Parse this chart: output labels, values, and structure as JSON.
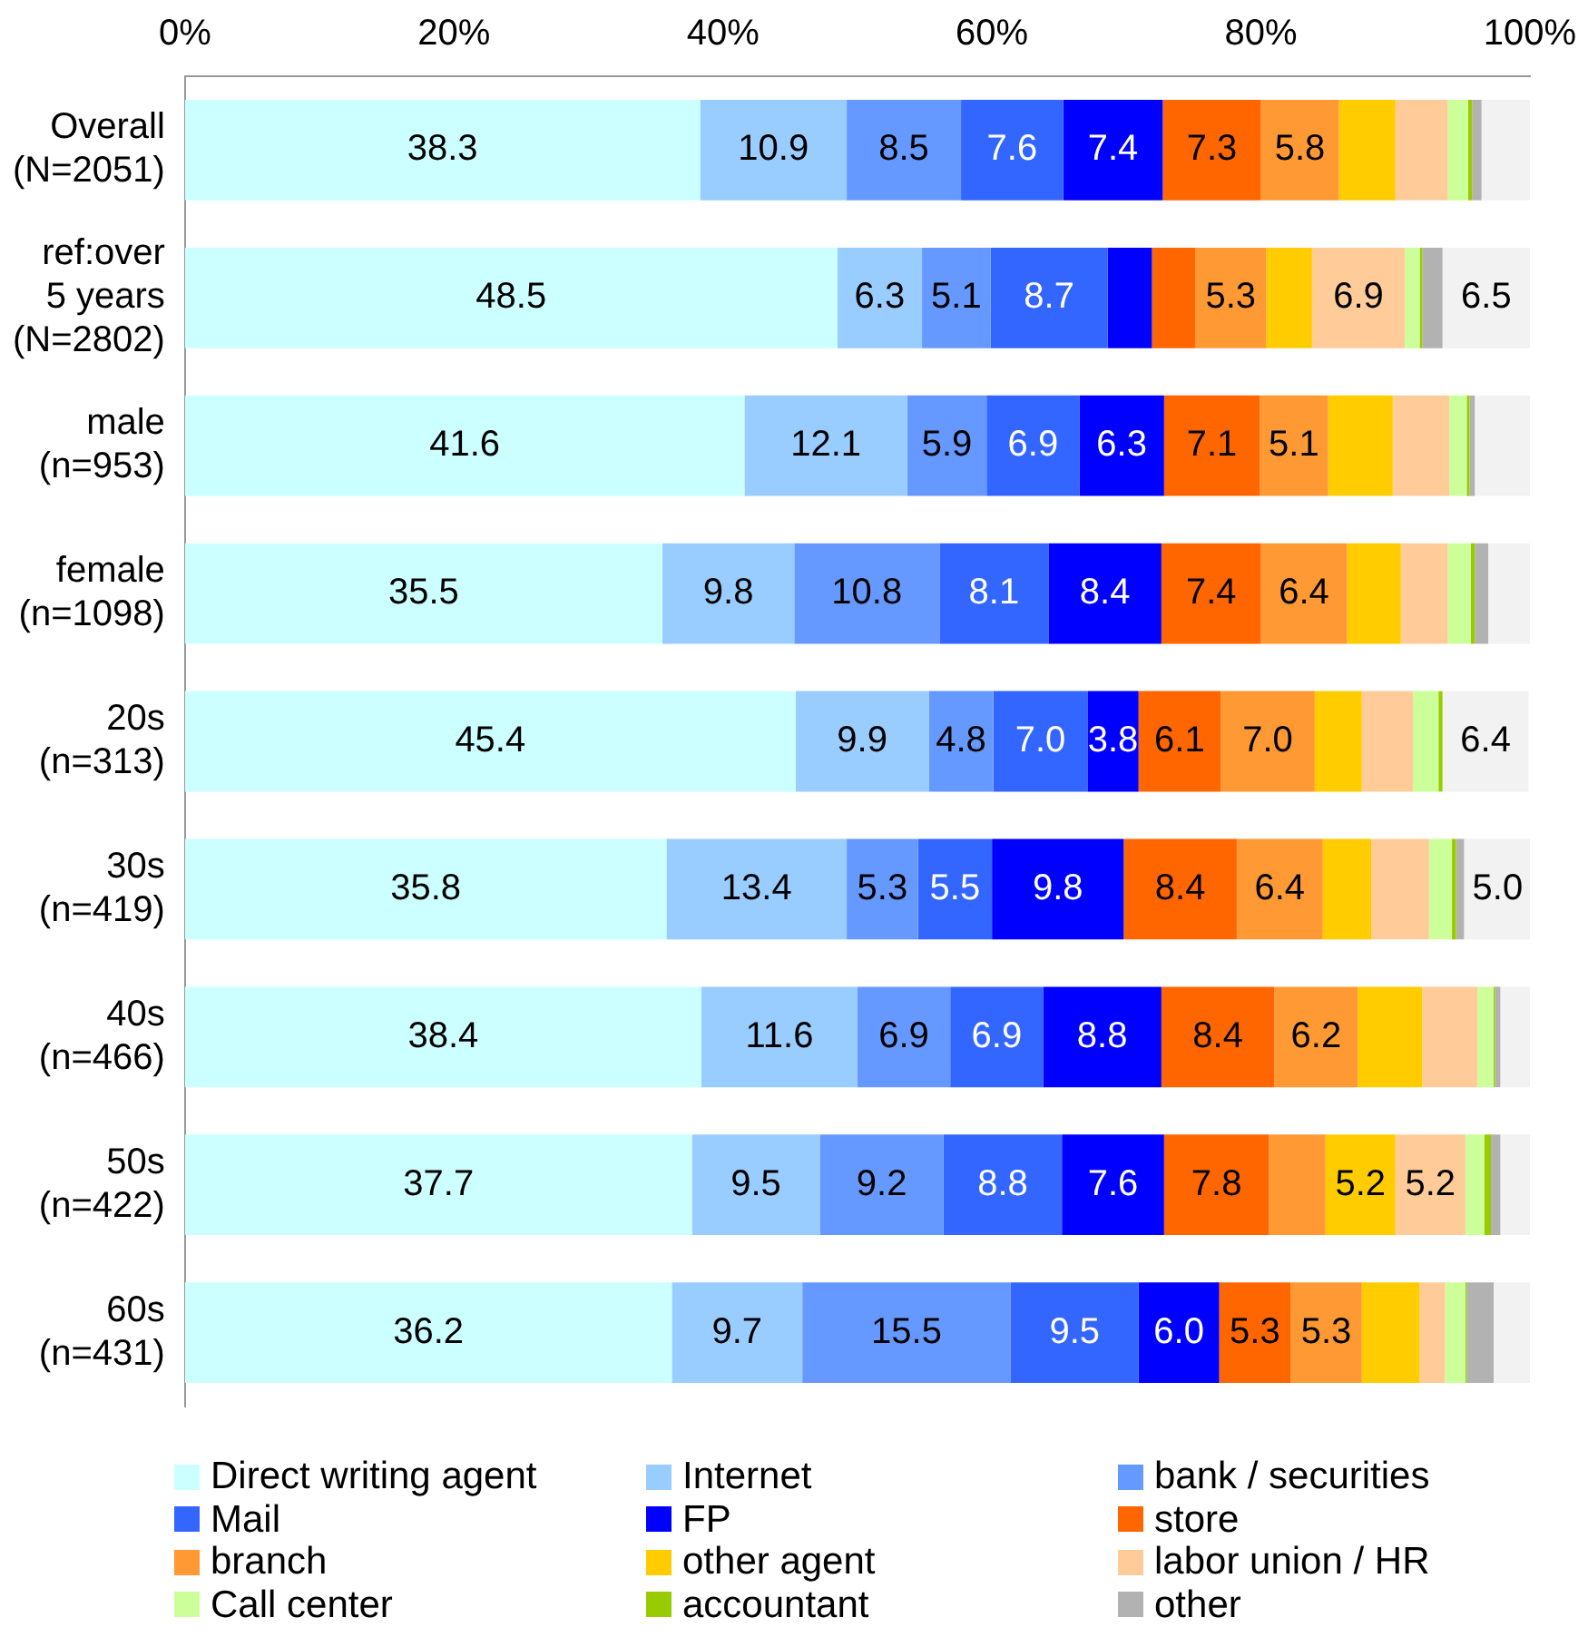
{
  "chart_data": {
    "type": "bar",
    "orientation": "horizontal",
    "stacked": true,
    "categories": [
      "Overall\n(N=2051)",
      "ref:over\n5 years\n(N=2802)",
      "male\n(n=953)",
      "female\n(n=1098)",
      "20s\n(n=313)",
      "30s\n(n=419)",
      "40s\n(n=466)",
      "50s\n(n=422)",
      "60s\n(n=431)"
    ],
    "xlim": [
      0,
      100
    ],
    "xticks": [
      {
        "value": 0,
        "label": "0%"
      },
      {
        "value": 20,
        "label": "20%"
      },
      {
        "value": 40,
        "label": "40%"
      },
      {
        "value": 60,
        "label": "60%"
      },
      {
        "value": 80,
        "label": "80%"
      },
      {
        "value": 100,
        "label": "100%"
      }
    ],
    "grid": false,
    "legend": "bottom",
    "series": [
      {
        "name": "Direct writing agent",
        "color": "#ccffff",
        "values": [
          38.3,
          48.5,
          41.6,
          35.5,
          45.4,
          35.8,
          38.4,
          37.7,
          36.2
        ],
        "value_labels": [
          "38.3",
          "48.5",
          "41.6",
          "35.5",
          "45.4",
          "35.8",
          "38.4",
          "37.7",
          "36.2"
        ]
      },
      {
        "name": "Internet",
        "color": "#99ccff",
        "values": [
          10.9,
          6.3,
          12.1,
          9.8,
          9.9,
          13.4,
          11.6,
          9.5,
          9.7
        ],
        "value_labels": [
          "10.9",
          "6.3",
          "12.1",
          "9.8",
          "9.9",
          "13.4",
          "11.6",
          "9.5",
          "9.7"
        ]
      },
      {
        "name": "bank / securities",
        "color": "#6699ff",
        "values": [
          8.5,
          5.1,
          5.9,
          10.8,
          4.8,
          5.3,
          6.9,
          9.2,
          15.5
        ],
        "value_labels": [
          "8.5",
          "5.1",
          "5.9",
          "10.8",
          "4.8",
          "5.3",
          "6.9",
          "9.2",
          "15.5"
        ]
      },
      {
        "name": "Mail",
        "color": "#3366ff",
        "values": [
          7.6,
          8.7,
          6.9,
          8.1,
          7.0,
          5.5,
          6.9,
          8.8,
          9.5
        ],
        "value_labels": [
          "7.6",
          "8.7",
          "6.9",
          "8.1",
          "7.0",
          "5.5",
          "6.9",
          "8.8",
          "9.5"
        ]
      },
      {
        "name": "FP",
        "color": "#0000ff",
        "values": [
          7.4,
          3.3,
          6.3,
          8.4,
          3.8,
          9.8,
          8.8,
          7.6,
          6.0
        ],
        "value_labels": [
          "7.4",
          null,
          "6.3",
          "8.4",
          "3.8",
          "9.8",
          "8.8",
          "7.6",
          "6.0"
        ]
      },
      {
        "name": "store",
        "color": "#ff6600",
        "values": [
          7.3,
          3.2,
          7.1,
          7.4,
          6.1,
          8.4,
          8.4,
          7.8,
          5.3
        ],
        "value_labels": [
          "7.3",
          null,
          "7.1",
          "7.4",
          "6.1",
          "8.4",
          "8.4",
          "7.8",
          "5.3"
        ]
      },
      {
        "name": "branch",
        "color": "#ff9933",
        "values": [
          5.8,
          5.3,
          5.1,
          6.4,
          7.0,
          6.4,
          6.2,
          4.2,
          5.3
        ],
        "value_labels": [
          "5.8",
          "5.3",
          "5.1",
          "6.4",
          "7.0",
          "6.4",
          "6.2",
          null,
          "5.3"
        ]
      },
      {
        "name": "other agent",
        "color": "#ffcc00",
        "values": [
          4.2,
          3.4,
          4.8,
          4.0,
          3.5,
          3.6,
          4.8,
          5.2,
          4.3
        ],
        "value_labels": [
          null,
          null,
          null,
          null,
          null,
          null,
          null,
          "5.2",
          null
        ]
      },
      {
        "name": "labor union / HR",
        "color": "#ffcc99",
        "values": [
          3.9,
          6.9,
          4.2,
          3.5,
          3.8,
          4.3,
          4.1,
          5.2,
          1.9
        ],
        "value_labels": [
          null,
          "6.9",
          null,
          null,
          null,
          null,
          null,
          "5.2",
          null
        ]
      },
      {
        "name": "Call center",
        "color": "#ccff99",
        "values": [
          1.5,
          1.1,
          1.3,
          1.7,
          1.9,
          1.7,
          1.2,
          1.4,
          1.5
        ]
      },
      {
        "name": "accountant",
        "color": "#99cc00",
        "values": [
          0.3,
          0.2,
          0.2,
          0.3,
          0.3,
          0.3,
          0.1,
          0.5,
          0.1
        ]
      },
      {
        "name": "other",
        "color": "#b2b2b2",
        "values": [
          0.7,
          1.5,
          0.4,
          1.0,
          null,
          0.6,
          0.4,
          0.7,
          2.0
        ]
      },
      {
        "color": "#f2f2f2",
        "values": [
          3.6,
          6.5,
          4.1,
          3.1,
          6.4,
          5.0,
          2.3,
          2.2,
          2.8
        ],
        "value_labels": [
          null,
          "6.5",
          null,
          null,
          "6.4",
          "5.0",
          null,
          null,
          null
        ]
      }
    ]
  }
}
